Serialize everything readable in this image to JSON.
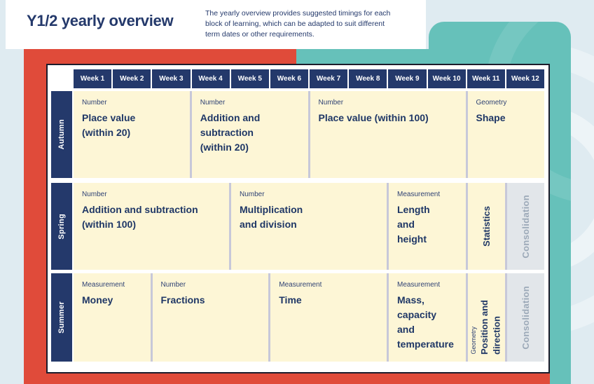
{
  "header": {
    "title": "Y1/2 yearly overview",
    "description": "The yearly overview provides suggested timings for each\nblock of learning, which can be adapted to suit different\nterm dates or other requirements."
  },
  "weeks": [
    "Week 1",
    "Week 2",
    "Week 3",
    "Week 4",
    "Week 5",
    "Week 6",
    "Week 7",
    "Week 8",
    "Week 9",
    "Week 10",
    "Week 11",
    "Week 12"
  ],
  "terms": [
    {
      "label": "Autumn",
      "blocks": [
        {
          "category": "Number",
          "title": "Place value\n(within 20)",
          "start": 1,
          "span": 3,
          "type": "normal"
        },
        {
          "category": "Number",
          "title": "Addition and\nsubtraction\n(within 20)",
          "start": 4,
          "span": 3,
          "type": "normal"
        },
        {
          "category": "Number",
          "title": "Place value (within 100)",
          "start": 7,
          "span": 4,
          "type": "normal"
        },
        {
          "category": "Geometry",
          "title": "Shape",
          "start": 11,
          "span": 2,
          "type": "normal"
        }
      ]
    },
    {
      "label": "Spring",
      "blocks": [
        {
          "category": "Number",
          "title": "Addition and subtraction\n(within 100)",
          "start": 1,
          "span": 4,
          "type": "normal"
        },
        {
          "category": "Number",
          "title": "Multiplication\nand division",
          "start": 5,
          "span": 4,
          "type": "normal"
        },
        {
          "category": "Measurement",
          "title": "Length\nand\nheight",
          "start": 9,
          "span": 2,
          "type": "normal"
        },
        {
          "category": "",
          "title": "Statistics",
          "start": 11,
          "span": 1,
          "type": "vertical"
        },
        {
          "category": "",
          "title": "Consolidation",
          "start": 12,
          "span": 1,
          "type": "consolidation"
        }
      ]
    },
    {
      "label": "Summer",
      "blocks": [
        {
          "category": "Measurement",
          "title": "Money",
          "start": 1,
          "span": 2,
          "type": "normal"
        },
        {
          "category": "Number",
          "title": "Fractions",
          "start": 3,
          "span": 3,
          "type": "normal"
        },
        {
          "category": "Measurement",
          "title": "Time",
          "start": 6,
          "span": 3,
          "type": "normal"
        },
        {
          "category": "Measurement",
          "title": "Mass,\ncapacity\nand\ntemperature",
          "start": 9,
          "span": 2,
          "type": "normal"
        },
        {
          "category": "Geometry",
          "title": "Position and\ndirection",
          "start": 11,
          "span": 1,
          "type": "vertical-geo"
        },
        {
          "category": "",
          "title": "Consolidation",
          "start": 12,
          "span": 1,
          "type": "consolidation"
        }
      ]
    }
  ],
  "colors": {
    "navy": "#24396b",
    "red": "#e04b3a",
    "teal": "#66c1ba",
    "pale": "#dfebf1",
    "cream": "#fdf6d6",
    "lavender": "#c7c8d9",
    "border": "#1c1c2b",
    "gray-bg": "#e2e6ea",
    "gray-text": "#9ca9b8"
  }
}
